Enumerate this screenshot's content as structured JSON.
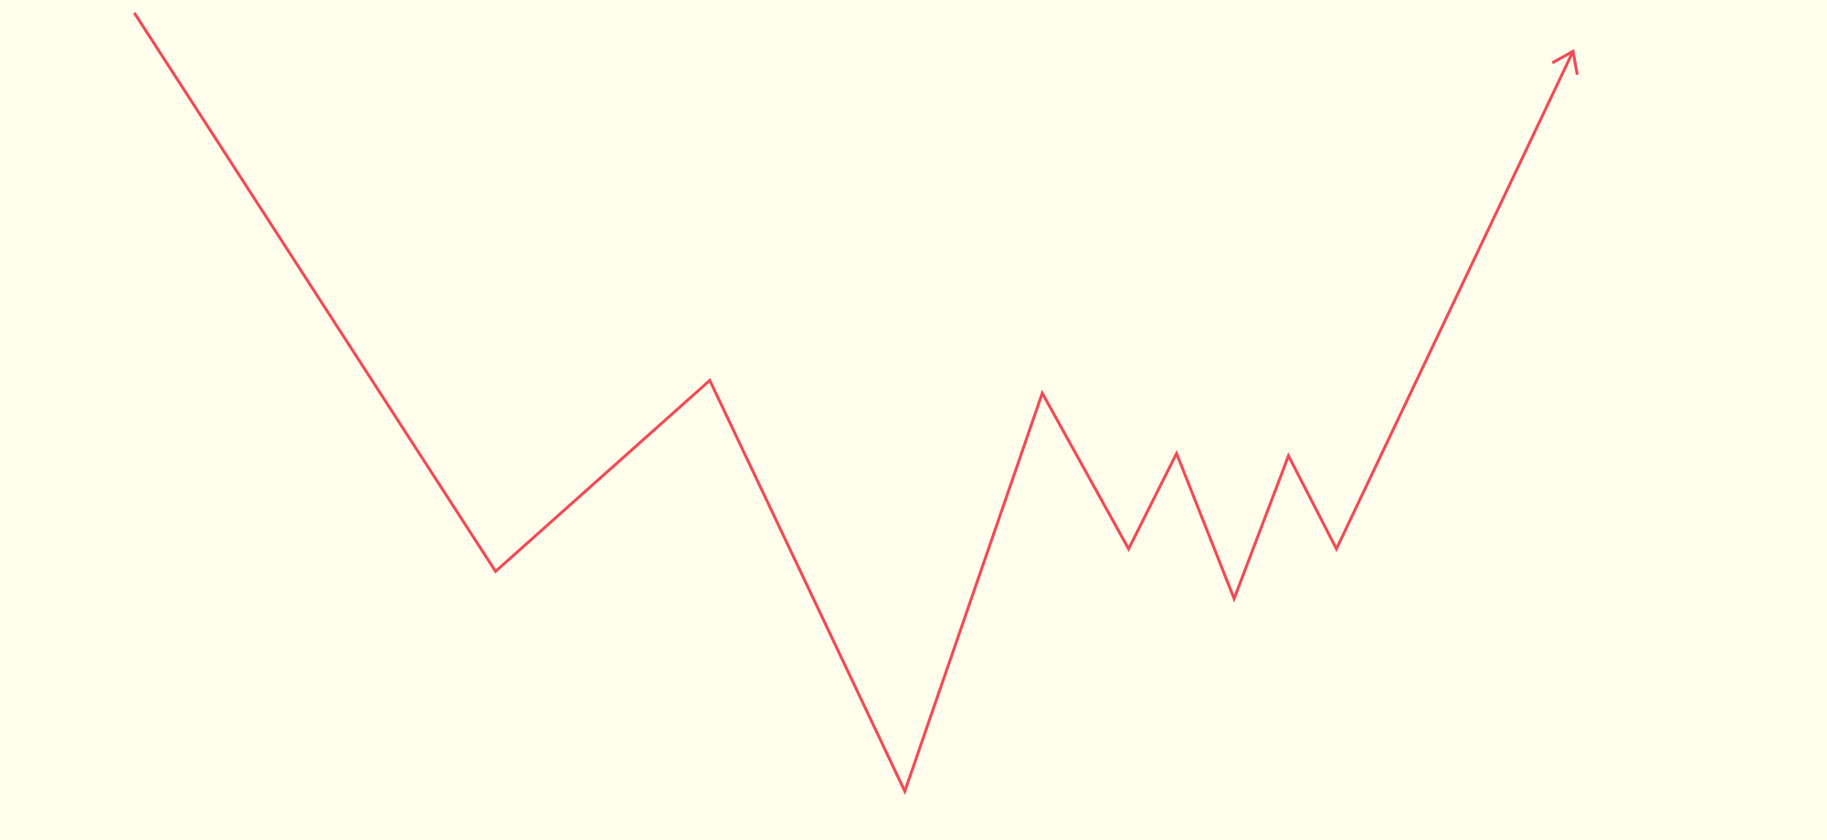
{
  "chart_data": {
    "type": "line",
    "title": "",
    "xlabel": "",
    "ylabel": "",
    "axes_visible": false,
    "grid": false,
    "legend": "none",
    "end_marker": "arrow",
    "x": [
      0,
      11.3,
      18.0,
      24.1,
      28.4,
      31.1,
      32.6,
      34.4,
      36.1,
      37.6,
      45.0
    ],
    "series": [
      {
        "values": [
          100,
          30.4,
          54.2,
          3.0,
          52.6,
          33.2,
          45.1,
          27.0,
          44.8,
          33.2,
          95.2
        ]
      }
    ],
    "xlim": [
      0,
      45
    ],
    "ylim": [
      0,
      100
    ],
    "colors": {
      "background": "#fffeec",
      "line": "#f04a56"
    }
  }
}
